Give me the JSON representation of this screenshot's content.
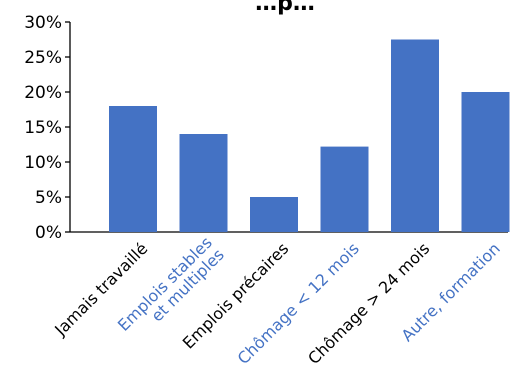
{
  "chart_data": {
    "type": "bar",
    "title": "…p…",
    "categories": [
      "Jamais travaillé",
      "Emplois stables et multiples",
      "Emplois précaires",
      "Chômage < 12 mois",
      "Chômage > 24 mois",
      "Autre, formation"
    ],
    "category_lines": [
      [
        "Jamais travaillé"
      ],
      [
        "Emplois stables",
        "et multiples"
      ],
      [
        "Emplois précaires"
      ],
      [
        "Chômage < 12 mois"
      ],
      [
        "Chômage > 24 mois"
      ],
      [
        "Autre, formation"
      ]
    ],
    "category_colors": [
      "#000000",
      "#4472c4",
      "#000000",
      "#4472c4",
      "#000000",
      "#4472c4"
    ],
    "values": [
      18,
      14,
      5,
      12.2,
      27.5,
      20
    ],
    "ylim": [
      0,
      30
    ],
    "yticks": [
      0,
      5,
      10,
      15,
      20,
      25,
      30
    ],
    "ytick_labels": [
      "0%",
      "5%",
      "10%",
      "15%",
      "20%",
      "25%",
      "30%"
    ],
    "bar_color": "#4472c4",
    "grid": false,
    "legend": "none"
  }
}
